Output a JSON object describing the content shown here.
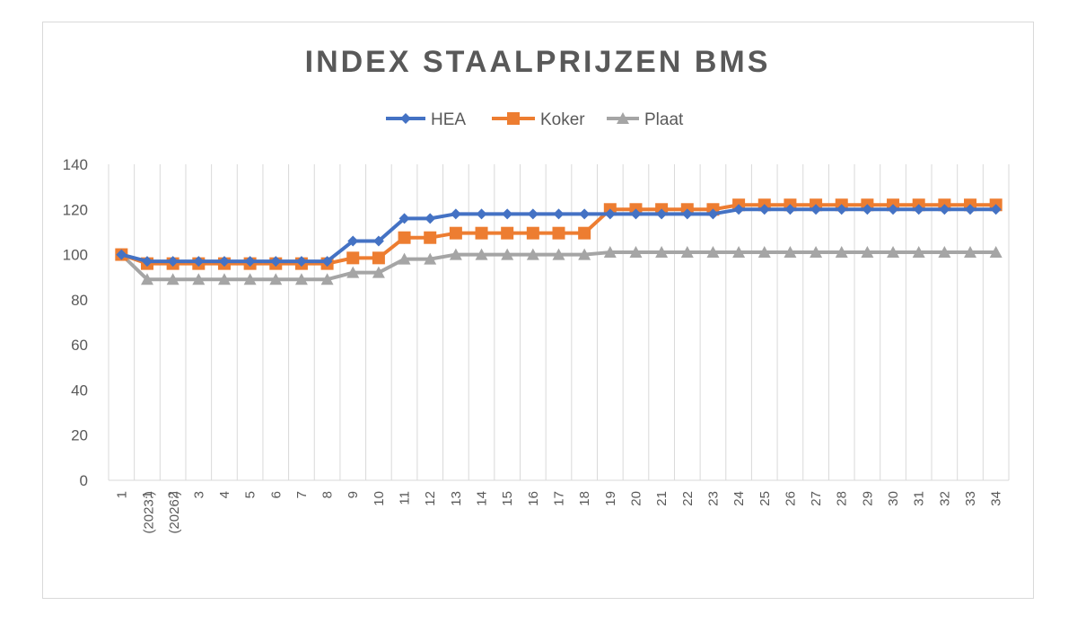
{
  "chart_data": {
    "type": "line",
    "title": "INDEX STAALPRIJZEN BMS",
    "xlabel": "",
    "ylabel": "",
    "ylim": [
      0,
      140
    ],
    "yticks": [
      "0",
      "20",
      "40",
      "60",
      "80",
      "100",
      "120",
      "140"
    ],
    "grid": "vertical",
    "legend_position": "top",
    "categories": [
      "1\n(2023:)",
      "1\n(2026:)",
      "2",
      "3",
      "4",
      "5",
      "6",
      "7",
      "8",
      "9",
      "10",
      "11",
      "12",
      "13",
      "14",
      "15",
      "16",
      "17",
      "18",
      "19",
      "20",
      "21",
      "22",
      "23",
      "24",
      "25",
      "26",
      "27",
      "28",
      "29",
      "30",
      "31",
      "32",
      "33",
      "34"
    ],
    "series": [
      {
        "name": "HEA",
        "color": "#4472c4",
        "marker": "diamond",
        "values": [
          100,
          97,
          97,
          97,
          97,
          97,
          97,
          97,
          97,
          106,
          106,
          116,
          116,
          118,
          118,
          118,
          118,
          118,
          118,
          118,
          118,
          118,
          118,
          118,
          120,
          120,
          120,
          120,
          120,
          120,
          120,
          120,
          120,
          120,
          120
        ]
      },
      {
        "name": "Koker",
        "color": "#ed7d31",
        "marker": "square",
        "values": [
          100,
          96,
          96,
          96,
          96,
          96,
          96,
          96,
          96,
          98.5,
          98.5,
          107.5,
          107.5,
          109.5,
          109.5,
          109.5,
          109.5,
          109.5,
          109.5,
          120,
          120,
          120,
          120,
          120,
          122,
          122,
          122,
          122,
          122,
          122,
          122,
          122,
          122,
          122,
          122
        ]
      },
      {
        "name": "Plaat",
        "color": "#a5a5a5",
        "marker": "triangle",
        "values": [
          100,
          89,
          89,
          89,
          89,
          89,
          89,
          89,
          89,
          92,
          92,
          98,
          98,
          100,
          100,
          100,
          100,
          100,
          100,
          101,
          101,
          101,
          101,
          101,
          101,
          101,
          101,
          101,
          101,
          101,
          101,
          101,
          101,
          101,
          101
        ]
      }
    ]
  }
}
